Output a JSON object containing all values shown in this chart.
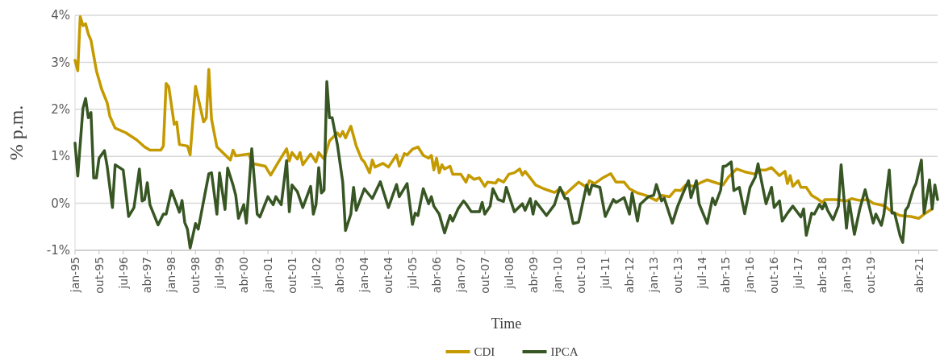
{
  "chart_data": {
    "type": "line",
    "xlabel": "Time",
    "ylabel": "% p.m.",
    "xlim": [
      "1995-01",
      "2021-11"
    ],
    "ylim": [
      -1,
      4
    ],
    "yticks": [
      {
        "value": -1,
        "label": "-1%"
      },
      {
        "value": 0,
        "label": "0%"
      },
      {
        "value": 1,
        "label": "1%"
      },
      {
        "value": 2,
        "label": "2%"
      },
      {
        "value": 3,
        "label": "3%"
      },
      {
        "value": 4,
        "label": "4%"
      }
    ],
    "xticks": [
      {
        "value": "1995-01",
        "label": "jan-95"
      },
      {
        "value": "1995-10",
        "label": "out-95"
      },
      {
        "value": "1996-07",
        "label": "jul-96"
      },
      {
        "value": "1997-04",
        "label": "abr-97"
      },
      {
        "value": "1998-01",
        "label": "jan-98"
      },
      {
        "value": "1998-10",
        "label": "out-98"
      },
      {
        "value": "1999-07",
        "label": "jul-99"
      },
      {
        "value": "2000-04",
        "label": "abr-00"
      },
      {
        "value": "2001-01",
        "label": "jan-01"
      },
      {
        "value": "2001-10",
        "label": "out-01"
      },
      {
        "value": "2002-07",
        "label": "jul-02"
      },
      {
        "value": "2003-04",
        "label": "abr-03"
      },
      {
        "value": "2004-01",
        "label": "jan-04"
      },
      {
        "value": "2004-10",
        "label": "out-04"
      },
      {
        "value": "2005-07",
        "label": "jul-05"
      },
      {
        "value": "2006-04",
        "label": "abr-06"
      },
      {
        "value": "2007-01",
        "label": "jan-07"
      },
      {
        "value": "2007-10",
        "label": "out-07"
      },
      {
        "value": "2008-07",
        "label": "jul-08"
      },
      {
        "value": "2009-04",
        "label": "abr-09"
      },
      {
        "value": "2010-01",
        "label": "jan-10"
      },
      {
        "value": "2010-10",
        "label": "out-10"
      },
      {
        "value": "2011-07",
        "label": "jul-11"
      },
      {
        "value": "2012-04",
        "label": "abr-12"
      },
      {
        "value": "2013-01",
        "label": "jan-13"
      },
      {
        "value": "2013-10",
        "label": "out-13"
      },
      {
        "value": "2014-07",
        "label": "jul-14"
      },
      {
        "value": "2015-04",
        "label": "abr-15"
      },
      {
        "value": "2016-01",
        "label": "jan-16"
      },
      {
        "value": "2016-10",
        "label": "out-16"
      },
      {
        "value": "2017-07",
        "label": "jul-17"
      },
      {
        "value": "2018-04",
        "label": "abr-18"
      },
      {
        "value": "2019-01",
        "label": "jan-19"
      },
      {
        "value": "2019-10",
        "label": "out-19"
      },
      {
        "value": "2021-04",
        "label": "abr-21"
      }
    ],
    "grid": "y",
    "legend": "bottom",
    "marker": "none",
    "line_style": "solid",
    "series": [
      {
        "name": "CDI",
        "color": "#c49a00",
        "x": [
          "1995-01",
          "1995-02",
          "1995-03",
          "1995-04",
          "1995-05",
          "1995-06",
          "1995-07",
          "1995-09",
          "1995-11",
          "1996-01",
          "1996-02",
          "1996-04",
          "1996-08",
          "1996-12",
          "1997-03",
          "1997-05",
          "1997-09",
          "1997-10",
          "1997-11",
          "1997-12",
          "1998-02",
          "1998-03",
          "1998-04",
          "1998-07",
          "1998-08",
          "1998-10",
          "1999-01",
          "1999-02",
          "1999-03",
          "1999-04",
          "1999-06",
          "1999-11",
          "1999-12",
          "2000-01",
          "2000-06",
          "2000-07",
          "2000-12",
          "2001-02",
          "2001-05",
          "2001-08",
          "2001-09",
          "2001-10",
          "2001-12",
          "2002-01",
          "2002-02",
          "2002-05",
          "2002-07",
          "2002-08",
          "2002-10",
          "2002-12",
          "2003-03",
          "2003-04",
          "2003-05",
          "2003-06",
          "2003-08",
          "2003-10",
          "2003-12",
          "2004-01",
          "2004-03",
          "2004-04",
          "2004-05",
          "2004-08",
          "2004-10",
          "2005-01",
          "2005-02",
          "2005-04",
          "2005-05",
          "2005-07",
          "2005-09",
          "2005-11",
          "2006-01",
          "2006-02",
          "2006-03",
          "2006-04",
          "2006-05",
          "2006-06",
          "2006-07",
          "2006-09",
          "2006-10",
          "2007-01",
          "2007-03",
          "2007-04",
          "2007-06",
          "2007-08",
          "2007-10",
          "2007-11",
          "2008-02",
          "2008-03",
          "2008-05",
          "2008-07",
          "2008-09",
          "2008-11",
          "2008-12",
          "2009-01",
          "2009-03",
          "2009-05",
          "2009-08",
          "2009-12",
          "2010-02",
          "2010-04",
          "2010-09",
          "2010-12",
          "2011-01",
          "2011-03",
          "2011-06",
          "2011-09",
          "2011-11",
          "2012-02",
          "2012-04",
          "2012-07",
          "2012-10",
          "2013-02",
          "2013-04",
          "2013-07",
          "2013-09",
          "2013-11",
          "2014-01",
          "2014-04",
          "2014-07",
          "2014-09",
          "2014-11",
          "2015-03",
          "2015-05",
          "2015-08",
          "2015-11",
          "2016-03",
          "2016-05",
          "2016-07",
          "2016-09",
          "2016-12",
          "2017-02",
          "2017-03",
          "2017-04",
          "2017-05",
          "2017-07",
          "2017-08",
          "2017-10",
          "2017-12",
          "2018-02",
          "2018-04",
          "2018-05",
          "2018-09",
          "2019-01",
          "2019-03",
          "2019-06",
          "2019-09",
          "2019-11",
          "2020-03",
          "2020-06",
          "2020-09",
          "2021-01",
          "2021-04",
          "2021-06",
          "2021-09"
        ],
        "values": [
          3.04,
          2.82,
          3.97,
          3.78,
          3.82,
          3.6,
          3.47,
          2.82,
          2.42,
          2.14,
          1.85,
          1.6,
          1.5,
          1.35,
          1.2,
          1.13,
          1.13,
          1.22,
          2.55,
          2.48,
          1.68,
          1.73,
          1.25,
          1.22,
          1.03,
          2.49,
          1.73,
          1.82,
          2.85,
          1.79,
          1.2,
          0.92,
          1.13,
          1.01,
          1.05,
          0.85,
          0.79,
          0.6,
          0.88,
          1.16,
          0.9,
          1.08,
          0.94,
          1.08,
          0.82,
          1.05,
          0.88,
          1.08,
          0.94,
          1.33,
          1.5,
          1.42,
          1.53,
          1.39,
          1.64,
          1.22,
          0.94,
          0.88,
          0.65,
          0.92,
          0.77,
          0.85,
          0.77,
          1.03,
          0.79,
          1.06,
          1.03,
          1.15,
          1.2,
          1.02,
          0.96,
          1.02,
          0.71,
          0.96,
          0.65,
          0.82,
          0.73,
          0.79,
          0.62,
          0.62,
          0.45,
          0.6,
          0.51,
          0.54,
          0.36,
          0.45,
          0.43,
          0.51,
          0.45,
          0.62,
          0.65,
          0.73,
          0.6,
          0.68,
          0.54,
          0.39,
          0.31,
          0.23,
          0.31,
          0.19,
          0.45,
          0.34,
          0.48,
          0.42,
          0.54,
          0.63,
          0.45,
          0.45,
          0.31,
          0.22,
          0.17,
          0.06,
          0.17,
          0.14,
          0.28,
          0.27,
          0.39,
          0.36,
          0.45,
          0.5,
          0.46,
          0.39,
          0.56,
          0.73,
          0.67,
          0.62,
          0.71,
          0.71,
          0.76,
          0.59,
          0.68,
          0.42,
          0.59,
          0.36,
          0.48,
          0.34,
          0.34,
          0.17,
          0.1,
          0.02,
          0.08,
          0.08,
          0.05,
          0.1,
          0.06,
          0.08,
          0.0,
          -0.05,
          -0.18,
          -0.26,
          -0.28,
          -0.32,
          -0.23,
          -0.12
        ]
      },
      {
        "name": "IPCA",
        "color": "#375623",
        "x": [
          "1995-01",
          "1995-02",
          "1995-04",
          "1995-05",
          "1995-06",
          "1995-07",
          "1995-08",
          "1995-09",
          "1995-10",
          "1995-12",
          "1996-01",
          "1996-03",
          "1996-04",
          "1996-07",
          "1996-09",
          "1996-11",
          "1997-01",
          "1997-02",
          "1997-03",
          "1997-04",
          "1997-05",
          "1997-08",
          "1997-10",
          "1997-11",
          "1998-01",
          "1998-03",
          "1998-04",
          "1998-05",
          "1998-06",
          "1998-07",
          "1998-08",
          "1998-10",
          "1998-11",
          "1999-03",
          "1999-04",
          "1999-06",
          "1999-07",
          "1999-09",
          "1999-10",
          "1999-12",
          "2000-01",
          "2000-02",
          "2000-04",
          "2000-05",
          "2000-07",
          "2000-09",
          "2000-10",
          "2001-01",
          "2001-03",
          "2001-04",
          "2001-06",
          "2001-08",
          "2001-09",
          "2001-10",
          "2001-12",
          "2002-02",
          "2002-05",
          "2002-06",
          "2002-07",
          "2002-08",
          "2002-09",
          "2002-10",
          "2002-11",
          "2002-12",
          "2003-01",
          "2003-03",
          "2003-05",
          "2003-06",
          "2003-08",
          "2003-09",
          "2003-10",
          "2004-01",
          "2004-04",
          "2004-07",
          "2004-10",
          "2005-01",
          "2005-02",
          "2005-05",
          "2005-07",
          "2005-08",
          "2005-09",
          "2005-11",
          "2006-01",
          "2006-02",
          "2006-03",
          "2006-05",
          "2006-07",
          "2006-09",
          "2006-10",
          "2006-12",
          "2007-02",
          "2007-03",
          "2007-05",
          "2007-08",
          "2007-09",
          "2007-10",
          "2007-12",
          "2008-01",
          "2008-03",
          "2008-05",
          "2008-06",
          "2008-09",
          "2008-12",
          "2009-01",
          "2009-03",
          "2009-04",
          "2009-05",
          "2009-09",
          "2009-12",
          "2010-02",
          "2010-04",
          "2010-05",
          "2010-07",
          "2010-09",
          "2010-12",
          "2011-01",
          "2011-02",
          "2011-05",
          "2011-07",
          "2011-10",
          "2011-11",
          "2012-02",
          "2012-04",
          "2012-05",
          "2012-07",
          "2012-08",
          "2012-11",
          "2013-01",
          "2013-02",
          "2013-04",
          "2013-05",
          "2013-08",
          "2013-10",
          "2013-12",
          "2014-02",
          "2014-03",
          "2014-05",
          "2014-06",
          "2014-09",
          "2014-11",
          "2014-12",
          "2015-02",
          "2015-03",
          "2015-04",
          "2015-06",
          "2015-07",
          "2015-09",
          "2015-11",
          "2016-01",
          "2016-03",
          "2016-04",
          "2016-07",
          "2016-09",
          "2016-10",
          "2016-12",
          "2017-01",
          "2017-03",
          "2017-05",
          "2017-08",
          "2017-09",
          "2017-10",
          "2017-12",
          "2018-01",
          "2018-03",
          "2018-04",
          "2018-05",
          "2018-06",
          "2018-08",
          "2018-10",
          "2018-11",
          "2019-01",
          "2019-02",
          "2019-04",
          "2019-06",
          "2019-08",
          "2019-09",
          "2019-11",
          "2019-12",
          "2020-02",
          "2020-03",
          "2020-05",
          "2020-06",
          "2020-07",
          "2020-09",
          "2020-10",
          "2020-11",
          "2020-12",
          "2021-02",
          "2021-03",
          "2021-05",
          "2021-06",
          "2021-08",
          "2021-09",
          "2021-10",
          "2021-11"
        ],
        "values": [
          1.28,
          0.58,
          2.02,
          2.23,
          1.82,
          1.93,
          0.54,
          0.54,
          0.96,
          1.12,
          0.79,
          -0.09,
          0.82,
          0.71,
          -0.28,
          -0.09,
          0.73,
          0.05,
          0.08,
          0.44,
          -0.03,
          -0.46,
          -0.23,
          -0.23,
          0.27,
          -0.03,
          -0.19,
          0.06,
          -0.41,
          -0.55,
          -0.95,
          -0.43,
          -0.55,
          0.63,
          0.65,
          -0.23,
          0.65,
          -0.13,
          0.75,
          0.39,
          0.17,
          -0.32,
          -0.03,
          -0.42,
          1.16,
          -0.23,
          -0.29,
          0.14,
          -0.03,
          0.14,
          -0.03,
          0.91,
          -0.18,
          0.39,
          0.25,
          -0.09,
          0.36,
          -0.23,
          -0.03,
          0.76,
          0.22,
          0.28,
          2.59,
          1.82,
          1.82,
          1.25,
          0.45,
          -0.58,
          -0.23,
          0.34,
          -0.15,
          0.31,
          0.1,
          0.46,
          -0.09,
          0.4,
          0.14,
          0.42,
          -0.45,
          -0.21,
          -0.26,
          0.31,
          -0.01,
          0.14,
          -0.06,
          -0.23,
          -0.63,
          -0.26,
          -0.38,
          -0.12,
          0.05,
          -0.01,
          -0.18,
          -0.18,
          0.02,
          -0.23,
          -0.06,
          0.31,
          0.08,
          0.04,
          0.34,
          -0.18,
          -0.01,
          -0.15,
          0.1,
          -0.23,
          0.04,
          -0.26,
          -0.03,
          0.34,
          0.1,
          0.1,
          -0.43,
          -0.4,
          0.39,
          0.19,
          0.39,
          0.34,
          -0.28,
          0.08,
          0.02,
          0.12,
          -0.23,
          0.22,
          -0.38,
          -0.02,
          0.14,
          0.17,
          0.4,
          0.05,
          0.11,
          -0.42,
          -0.06,
          0.22,
          0.48,
          0.12,
          0.48,
          -0.01,
          -0.43,
          0.11,
          -0.03,
          0.28,
          0.79,
          0.79,
          0.88,
          0.27,
          0.34,
          -0.22,
          0.34,
          0.56,
          0.84,
          -0.01,
          0.34,
          -0.09,
          0.05,
          -0.38,
          -0.21,
          -0.06,
          -0.29,
          -0.12,
          -0.68,
          -0.21,
          -0.23,
          -0.02,
          -0.12,
          0.01,
          -0.15,
          -0.35,
          -0.06,
          0.82,
          -0.53,
          0.04,
          -0.66,
          -0.12,
          0.29,
          0.05,
          -0.42,
          -0.23,
          -0.47,
          -0.23,
          0.71,
          -0.21,
          -0.21,
          -0.69,
          -0.83,
          -0.15,
          -0.07,
          0.31,
          0.42,
          0.92,
          -0.21,
          0.5,
          -0.12,
          0.39,
          0.08
        ]
      }
    ]
  }
}
